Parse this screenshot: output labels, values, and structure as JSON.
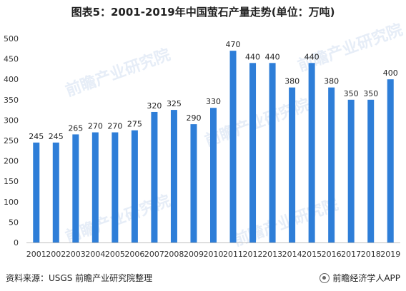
{
  "title": "图表5：2001-2019年中国萤石产量走势(单位：万吨)",
  "watermark_text": "前瞻产业研究院",
  "source": "资料来源：USGS 前瞻产业研究院整理",
  "brand": "前瞻经济学人APP",
  "colors": {
    "bar": "#2e7ed8",
    "axis": "#bfbfbf",
    "text": "#333333"
  },
  "chart_data": {
    "type": "bar",
    "title": "图表5：2001-2019年中国萤石产量走势(单位：万吨)",
    "categories": [
      "2001",
      "2002",
      "2003",
      "2004",
      "2005",
      "2006",
      "2007",
      "2008",
      "2009",
      "2010",
      "2011",
      "2012",
      "2013",
      "2014",
      "2015",
      "2016",
      "2017",
      "2018",
      "2019"
    ],
    "values": [
      245,
      245,
      265,
      270,
      270,
      275,
      320,
      325,
      290,
      330,
      470,
      440,
      440,
      380,
      440,
      380,
      350,
      350,
      400
    ],
    "y_ticks": [
      0,
      50,
      100,
      150,
      200,
      250,
      300,
      350,
      400,
      450,
      500
    ],
    "ylim": [
      0,
      500
    ],
    "grid": false,
    "legend": "none"
  }
}
